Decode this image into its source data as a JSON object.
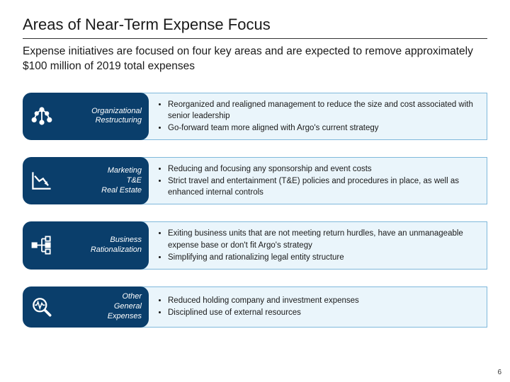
{
  "title": "Areas of Near-Term Expense Focus",
  "subtitle": "Expense initiatives are focused on four key areas and are expected to remove approximately $100 million of 2019 total expenses",
  "page_number": "6",
  "colors": {
    "pill_bg": "#0a3e6b",
    "content_bg": "#eaf5fb",
    "content_border": "#7fb8db",
    "icon_stroke": "#ffffff"
  },
  "rows": [
    {
      "icon": "org-chart",
      "label": "Organizational Restructuring",
      "bullets": [
        "Reorganized and realigned management to reduce the size and cost associated with senior leadership",
        "Go-forward team more aligned with Argo's current strategy"
      ]
    },
    {
      "icon": "declining-chart",
      "label": "Marketing\nT&E\nReal Estate",
      "bullets": [
        "Reducing and focusing any sponsorship and event costs",
        "Strict travel and entertainment (T&E) policies and procedures in place, as well as enhanced internal controls"
      ]
    },
    {
      "icon": "hierarchy",
      "label": "Business Rationalization",
      "bullets": [
        "Exiting business units that are not meeting return hurdles, have an unmanageable expense base or don't fit Argo's strategy",
        "Simplifying and rationalizing legal entity structure"
      ]
    },
    {
      "icon": "magnify-pulse",
      "label": "Other\nGeneral\nExpenses",
      "bullets": [
        "Reduced holding company and investment expenses",
        "Disciplined use of external resources"
      ]
    }
  ]
}
